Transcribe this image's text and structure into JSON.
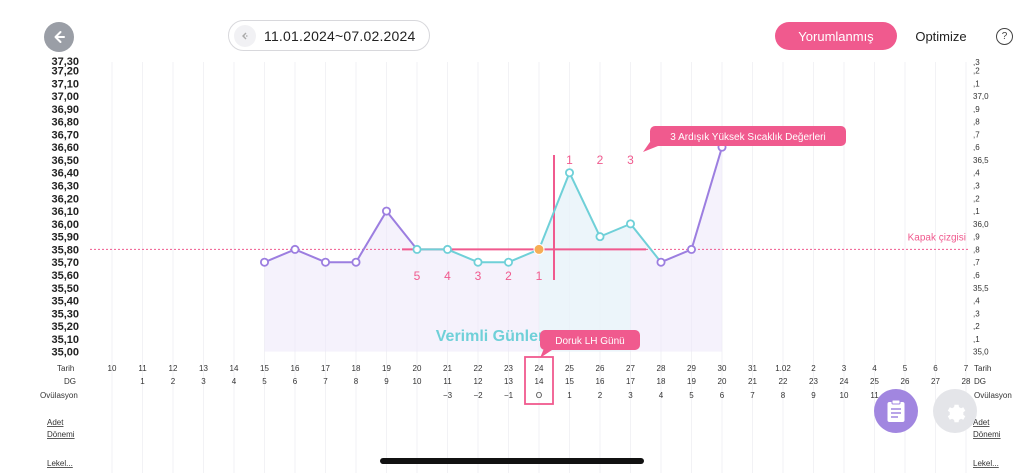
{
  "header": {
    "date_range": "11.01.2024~07.02.2024",
    "btn_interpreted": "Yorumlanmış",
    "btn_optimize": "Optimize",
    "help": "?"
  },
  "y_left_labels": [
    "37,20",
    "37,10",
    "37,00",
    "36,90",
    "36,80",
    "36,70",
    "36,60",
    "36,50",
    "36,40",
    "36,30",
    "36,20",
    "36,10",
    "36,00",
    "35,90",
    "35,80",
    "35,70",
    "35,60",
    "35,50",
    "35,40",
    "35,30",
    "35,20",
    "35,10",
    "35,00"
  ],
  "y_right_labels": [
    ",2",
    ",1",
    "37,0",
    ",9",
    ",8",
    ",7",
    ",6",
    "36,5",
    ",4",
    ",3",
    ",2",
    ",1",
    "36,0",
    ",9",
    ",8",
    ",7",
    ",6",
    "35,5",
    ",4",
    ",3",
    ",2",
    ",1",
    "35,0"
  ],
  "y_top_partial_left": "37,30",
  "y_top_partial_right": ",3",
  "row_labels": {
    "date": "Tarih",
    "dg": "DG",
    "ovulation": "Ovülasyon"
  },
  "dates": [
    "10",
    "11",
    "12",
    "13",
    "14",
    "15",
    "16",
    "17",
    "18",
    "19",
    "20",
    "21",
    "22",
    "23",
    "24",
    "25",
    "26",
    "27",
    "28",
    "29",
    "30",
    "31",
    "1.02",
    "2",
    "3",
    "4",
    "5",
    "6",
    "7"
  ],
  "dg": [
    "",
    "1",
    "2",
    "3",
    "4",
    "5",
    "6",
    "7",
    "8",
    "9",
    "10",
    "11",
    "12",
    "13",
    "14",
    "15",
    "16",
    "17",
    "18",
    "19",
    "20",
    "21",
    "22",
    "23",
    "24",
    "25",
    "26",
    "27",
    "28"
  ],
  "ovulation": [
    "",
    "",
    "",
    "",
    "",
    "",
    "",
    "",
    "",
    "",
    "",
    "−3",
    "−2",
    "−1",
    "O",
    "1",
    "2",
    "3",
    "4",
    "5",
    "6",
    "7",
    "8",
    "9",
    "10",
    "11",
    "",
    "",
    ""
  ],
  "left_sections": [
    "Adet",
    "Dönemi",
    "Lekel..."
  ],
  "right_sections": [
    "Adet",
    "Dönemi",
    "Lekel..."
  ],
  "annotations": {
    "three_high": "3 Ardışık Yüksek Sıcaklık Değerleri",
    "cover_line": "Kapak çizgisi",
    "peak_lh": "Doruk LH Günü",
    "fertile": "Verimli Günler",
    "low_counts": [
      "5",
      "4",
      "3",
      "2",
      "1"
    ],
    "high_counts": [
      "1",
      "2",
      "3"
    ]
  },
  "chart_data": {
    "type": "line",
    "x_day_index": [
      5,
      6,
      7,
      8,
      9,
      10,
      11,
      12,
      13,
      14,
      15,
      16,
      17,
      18,
      19,
      20
    ],
    "dates": [
      "15",
      "16",
      "17",
      "18",
      "19",
      "20",
      "21",
      "22",
      "23",
      "24",
      "25",
      "26",
      "27",
      "28",
      "29",
      "30"
    ],
    "temperatures": [
      35.7,
      35.8,
      35.7,
      35.7,
      36.1,
      35.8,
      35.8,
      35.7,
      35.7,
      35.8,
      36.4,
      35.9,
      36.0,
      35.7,
      35.8,
      36.6
    ],
    "cover_line_value": 35.8,
    "ylim": [
      35.0,
      37.3
    ],
    "colors": {
      "before": "#9c7ee0",
      "teal": "#6fd0d8",
      "pink": "#f05a8e",
      "orange": "#f6ad55"
    }
  }
}
